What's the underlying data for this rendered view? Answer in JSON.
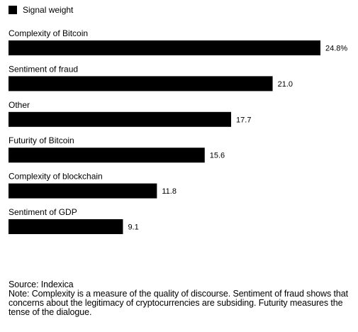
{
  "chart_data": {
    "type": "bar",
    "orientation": "horizontal",
    "categories": [
      "Complexity of Bitcoin",
      "Sentiment of fraud",
      "Other",
      "Futurity of Bitcoin",
      "Complexity of blockchain",
      "Sentiment of GDP"
    ],
    "series": [
      {
        "name": "Signal weight",
        "values": [
          24.8,
          21.0,
          17.7,
          15.6,
          11.8,
          9.1
        ],
        "value_labels": [
          "24.8%",
          "21.0",
          "17.7",
          "15.6",
          "11.8",
          "9.1"
        ],
        "color": "#000000"
      }
    ],
    "xlim": [
      0,
      24.8
    ],
    "grid": false,
    "legend_position": "top-left"
  },
  "footer": {
    "source": "Source: Indexica",
    "note": "Note: Complexity is a measure of the quality of discourse. Sentiment of fraud shows that concerns about the legitimacy of cryptocurrencies are subsiding. Futurity measures the tense of the dialogue."
  }
}
